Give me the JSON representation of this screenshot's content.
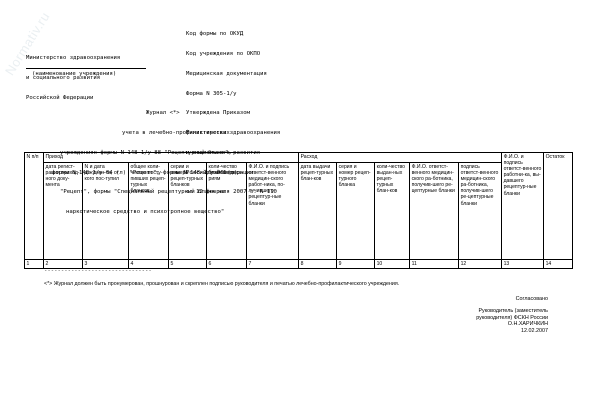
{
  "watermark": "Normativ.ru",
  "form_header": [
    "Код формы по ОКУД",
    "Код учреждения по ОКПО",
    "Медицинская документация",
    "Форма N 305-1/у",
    "Утверждена Приказом",
    "Министерства здравоохранения",
    "и социального развития",
    "Российской Федерации",
    "от 12 февраля 2007 г. N 110"
  ],
  "ministry_block": [
    "Министерство здравоохранения",
    "и социального развития",
    "Российской Федерации"
  ],
  "institution_caption": "(наименование учреждения)",
  "journal_title": [
    "Журнал <*>",
    "учета в лечебно-профилактических",
    "учреждениях формы N 148-1/у-88 \"Рецептурный бланк\",",
    "формы N 148-1/у-04 (л) \"Рецепт\", формы N 148-1/у-06 (л)",
    "\"Рецепт\", формы \"Специальный рецептурный бланк на",
    "наркотическое средство и психотропное вещество\""
  ],
  "table": {
    "group_headers": {
      "income": "Приход",
      "expense": "Расход"
    },
    "columns": [
      "N п/п",
      "дата регист-рации приход-ного доку-мента",
      "N и дата докумен-та, от кого пос-тупил",
      "общее коли-чество посту-пивших рецеп-турных бланков",
      "серии и номера рецеп-турных бланков",
      "коли-чество бланков по се-риям",
      "Ф.И.О. и подпись ответст-венного медицин-ского работ-ника, по-лучившего рецептур-ные бланки",
      "дата выдачи рецеп-турных блан-ков",
      "серия и номер рецеп-турного бланка",
      "коли-чество выдан-ных рецеп-турных блан-ков",
      "Ф.И.О. ответст-венного медицин-ского ра-ботника, получив-шего ре-цептурные бланки",
      "подпись ответст-венного медицин-ского ра-ботника, получив-шего ре-цептурные бланки",
      "Ф.И.О. и подпись ответст-венного работни-ка, вы-давшего рецептур-ные бланки",
      "Остаток"
    ],
    "numbers": [
      "1",
      "2",
      "3",
      "4",
      "5",
      "6",
      "7",
      "8",
      "9",
      "10",
      "11",
      "12",
      "13",
      "14"
    ]
  },
  "footnote_rule": "--------------------------------",
  "footnote": "<*> Журнал должен быть пронумерован, прошнурован и скреплен подписью руководителя и печатью лечебно-профилактического учреждения.",
  "signoff": [
    "Согласовано",
    "Руководитель (заместитель",
    "руководителя) ФСКН России",
    "О.Н.ХАРИЧКИН",
    "12.02.2007"
  ]
}
